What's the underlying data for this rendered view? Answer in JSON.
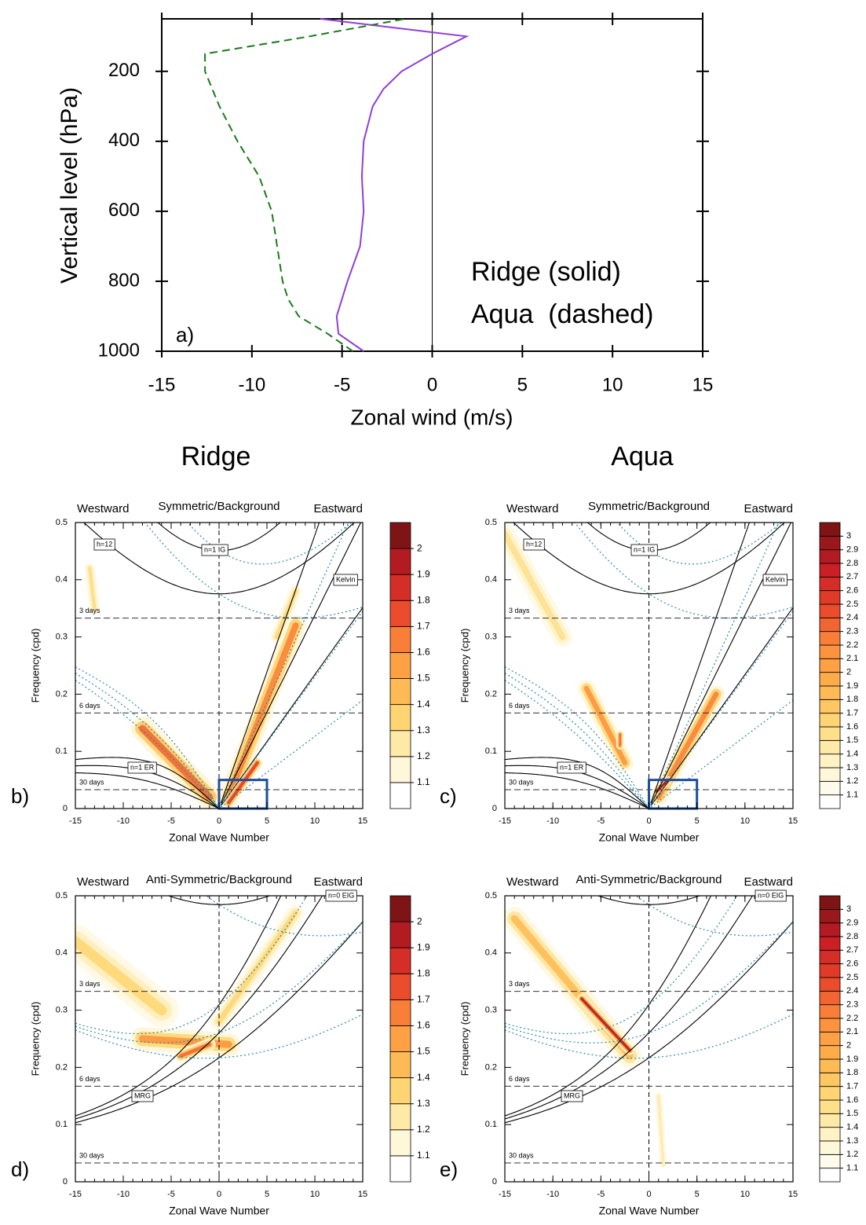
{
  "chart_data": [
    {
      "type": "line",
      "panel_label": "a)",
      "xlabel": "Zonal wind (m/s)",
      "ylabel": "Vertical level (hPa)",
      "xlim": [
        -15,
        15
      ],
      "xticks": [
        -15,
        -10,
        -5,
        0,
        5,
        10,
        15
      ],
      "ylim": [
        1000,
        50
      ],
      "yticks": [
        200,
        400,
        600,
        800,
        1000
      ],
      "y": [
        1000,
        950,
        900,
        850,
        800,
        700,
        600,
        500,
        400,
        300,
        250,
        200,
        150,
        100,
        50
      ],
      "series": [
        {
          "name": "Ridge (solid)",
          "color": "#8e3fd8",
          "dashed": false,
          "values": [
            -3.8,
            -5.2,
            -5.3,
            -5.0,
            -4.7,
            -4.0,
            -3.8,
            -3.9,
            -3.8,
            -3.3,
            -2.7,
            -1.7,
            0,
            1.9,
            -6.2
          ]
        },
        {
          "name": "Aqua  (dashed)",
          "color": "#1b7a1b",
          "dashed": true,
          "values": [
            -4.4,
            -5.8,
            -7.4,
            -8.0,
            -8.3,
            -8.6,
            -8.9,
            -9.6,
            -10.8,
            -11.8,
            -12.2,
            -12.6,
            -12.6,
            -6.8,
            -1.5
          ]
        }
      ]
    },
    {
      "type": "spectrum",
      "panel_label": "b)",
      "column_title": "Ridge",
      "symmetry": "symmetric",
      "header": [
        "Westward",
        "Symmetric/Background",
        "Eastward"
      ],
      "xlabel": "Zonal Wave Number",
      "ylabel": "Frequency (cpd)",
      "xlim": [
        -15,
        15
      ],
      "xticks": [
        -15,
        -10,
        -5,
        0,
        5,
        10,
        15
      ],
      "ylim": [
        0,
        0.5
      ],
      "yticks": [
        0,
        0.1,
        0.2,
        0.3,
        0.4,
        0.5
      ],
      "period_lines": [
        {
          "label": "3 days",
          "value": 0.333
        },
        {
          "label": "6 days",
          "value": 0.167
        },
        {
          "label": "30 days",
          "value": 0.033
        }
      ],
      "curve_labels": [
        "h=12",
        "n=1 IG",
        "Kelvin",
        "n=1 ER"
      ],
      "box": {
        "xlim": [
          0,
          5
        ],
        "ylim": [
          0,
          0.05
        ],
        "color": "#1f4e9c"
      },
      "colorbar": {
        "levels": [
          1.1,
          1.2,
          1.3,
          1.4,
          1.5,
          1.6,
          1.7,
          1.8,
          1.9,
          2
        ],
        "colormap": [
          "#ffffff",
          "#fff3c8",
          "#fed976",
          "#feb24c",
          "#fd8d3c",
          "#e8452a",
          "#c81e25",
          "#7f1416"
        ]
      }
    },
    {
      "type": "spectrum",
      "panel_label": "c)",
      "column_title": "Aqua",
      "symmetry": "symmetric",
      "header": [
        "Westward",
        "Symmetric/Background",
        "Eastward"
      ],
      "xlabel": "Zonal Wave Number",
      "ylabel": "Frequency (cpd)",
      "xlim": [
        -15,
        15
      ],
      "xticks": [
        -15,
        -10,
        -5,
        0,
        5,
        10,
        15
      ],
      "ylim": [
        0,
        0.5
      ],
      "yticks": [
        0,
        0.1,
        0.2,
        0.3,
        0.4,
        0.5
      ],
      "period_lines": [
        {
          "label": "3 days",
          "value": 0.333
        },
        {
          "label": "6 days",
          "value": 0.167
        },
        {
          "label": "30 days",
          "value": 0.033
        }
      ],
      "curve_labels": [
        "h=12",
        "n=1 IG",
        "Kelvin",
        "n=1 ER"
      ],
      "box": {
        "xlim": [
          0,
          5
        ],
        "ylim": [
          0,
          0.05
        ],
        "color": "#1f4e9c"
      },
      "colorbar": {
        "levels": [
          1.1,
          1.2,
          1.3,
          1.4,
          1.5,
          1.6,
          1.7,
          1.8,
          1.9,
          2,
          2.1,
          2.2,
          2.3,
          2.4,
          2.5,
          2.6,
          2.7,
          2.8,
          2.9,
          3
        ],
        "colormap": [
          "#ffffff",
          "#fff3c8",
          "#fed976",
          "#feb24c",
          "#fd8d3c",
          "#e8452a",
          "#c81e25",
          "#7f1416"
        ]
      }
    },
    {
      "type": "spectrum",
      "panel_label": "d)",
      "symmetry": "antisymmetric",
      "header": [
        "Westward",
        "Anti-Symmetric/Background",
        "Eastward"
      ],
      "xlabel": "Zonal Wave Number",
      "ylabel": "Frequency (cpd)",
      "xlim": [
        -15,
        15
      ],
      "xticks": [
        -15,
        -10,
        -5,
        0,
        5,
        10,
        15
      ],
      "ylim": [
        0,
        0.5
      ],
      "yticks": [
        0,
        0.1,
        0.2,
        0.3,
        0.4,
        0.5
      ],
      "period_lines": [
        {
          "label": "3 days",
          "value": 0.333
        },
        {
          "label": "6 days",
          "value": 0.167
        },
        {
          "label": "30 days",
          "value": 0.033
        }
      ],
      "curve_labels": [
        "n=0 EIG",
        "MRG"
      ],
      "colorbar": {
        "levels": [
          1.1,
          1.2,
          1.3,
          1.4,
          1.5,
          1.6,
          1.7,
          1.8,
          1.9,
          2
        ],
        "colormap": [
          "#ffffff",
          "#fff3c8",
          "#fed976",
          "#feb24c",
          "#fd8d3c",
          "#e8452a",
          "#c81e25",
          "#7f1416"
        ]
      }
    },
    {
      "type": "spectrum",
      "panel_label": "e)",
      "symmetry": "antisymmetric",
      "header": [
        "Westward",
        "Anti-Symmetric/Background",
        "Eastward"
      ],
      "xlabel": "Zonal Wave Number",
      "ylabel": "Frequency (cpd)",
      "xlim": [
        -15,
        15
      ],
      "xticks": [
        -15,
        -10,
        -5,
        0,
        5,
        10,
        15
      ],
      "ylim": [
        0,
        0.5
      ],
      "yticks": [
        0,
        0.1,
        0.2,
        0.3,
        0.4,
        0.5
      ],
      "period_lines": [
        {
          "label": "3 days",
          "value": 0.333
        },
        {
          "label": "6 days",
          "value": 0.167
        },
        {
          "label": "30 days",
          "value": 0.033
        }
      ],
      "curve_labels": [
        "n=0 EIG",
        "MRG"
      ],
      "colorbar": {
        "levels": [
          1.1,
          1.2,
          1.3,
          1.4,
          1.5,
          1.6,
          1.7,
          1.8,
          1.9,
          2,
          2.1,
          2.2,
          2.3,
          2.4,
          2.5,
          2.6,
          2.7,
          2.8,
          2.9,
          3
        ],
        "colormap": [
          "#ffffff",
          "#fff3c8",
          "#fed976",
          "#feb24c",
          "#fd8d3c",
          "#e8452a",
          "#c81e25",
          "#7f1416"
        ]
      }
    }
  ]
}
